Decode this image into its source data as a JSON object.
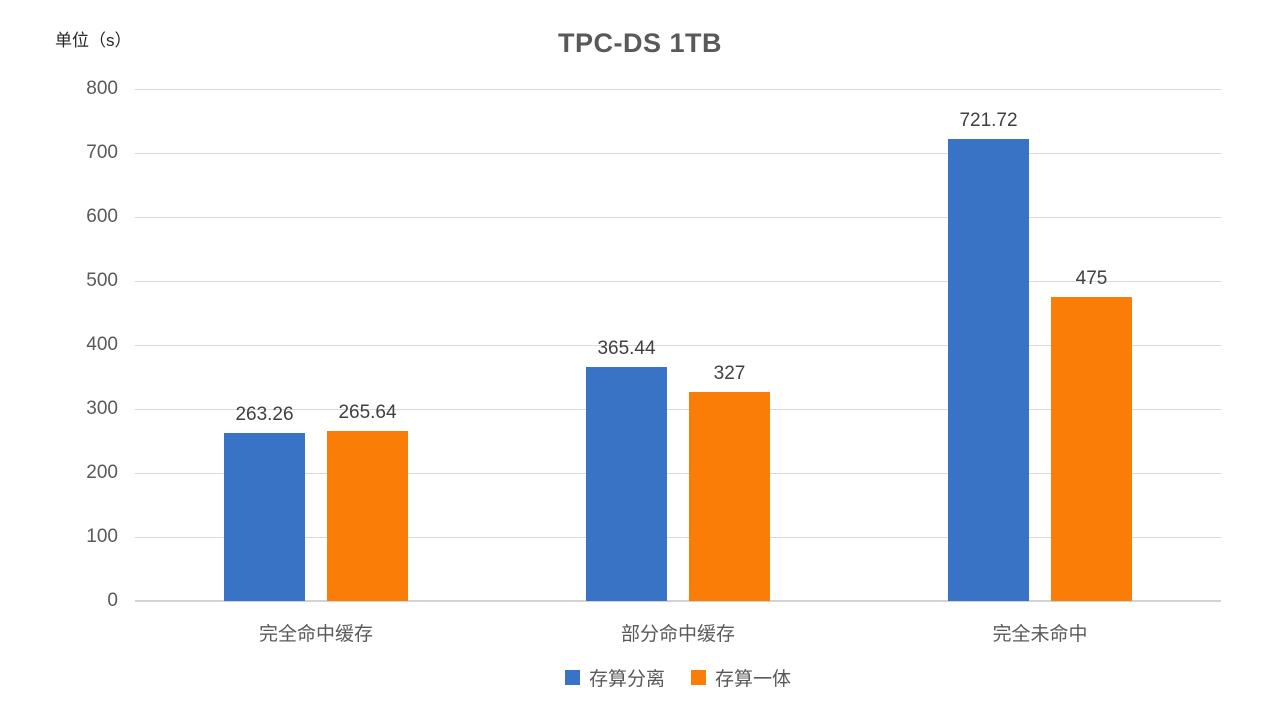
{
  "chart_data": {
    "type": "bar",
    "title": "TPC-DS 1TB",
    "ylabel": "单位（s）",
    "xlabel": "",
    "categories": [
      "完全命中缓存",
      "部分命中缓存",
      "完全未命中"
    ],
    "series": [
      {
        "name": "存算分离",
        "color": "#3973c6",
        "values": [
          263.26,
          365.44,
          721.72
        ]
      },
      {
        "name": "存算一体",
        "color": "#fa7d08",
        "values": [
          265.64,
          327,
          475
        ]
      }
    ],
    "ylim": [
      0,
      800
    ],
    "ytick_step": 100,
    "yticks": [
      "0",
      "100",
      "200",
      "300",
      "400",
      "500",
      "600",
      "700",
      "800"
    ],
    "grid": true,
    "gridline_color": "#d9d9d9",
    "axis_line_color": "#d2d2d4",
    "title_color": "#595959",
    "tick_label_color": "#595959",
    "data_label_color": "#404040",
    "legend_position": "bottom",
    "data_labels_visible": true
  }
}
